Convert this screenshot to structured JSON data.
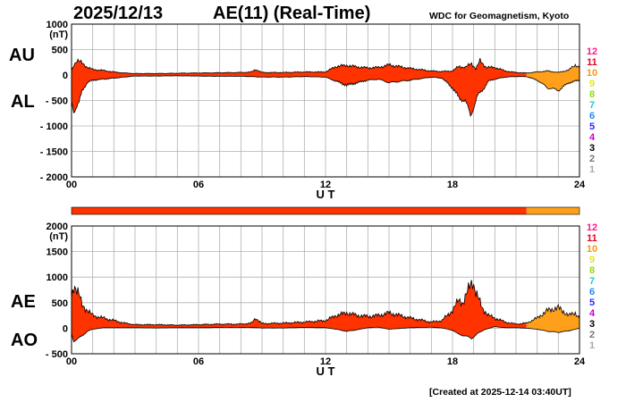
{
  "header": {
    "date": "2025/12/13",
    "title": "AE(11) (Real-Time)",
    "source": "WDC for Geomagnetism, Kyoto",
    "created": "[Created at 2025-12-14 03:40UT]"
  },
  "colors": {
    "band": "#ff3300",
    "edge": "#000000",
    "band_late": "#ff9f1a",
    "grid": "#b0b0b0"
  },
  "station_levels": {
    "labels": [
      "12",
      "11",
      "10",
      "9",
      "8",
      "7",
      "6",
      "5",
      "4",
      "3",
      "2",
      "1"
    ],
    "colors": [
      "#ff1a8c",
      "#e8001c",
      "#ff9900",
      "#e8e800",
      "#88e000",
      "#22cccc",
      "#1a8cff",
      "#2b2bff",
      "#cc00cc",
      "#000000",
      "#777777",
      "#aaaaaa"
    ]
  },
  "chart_data": [
    {
      "type": "area",
      "name": "AU / AL",
      "side_labels": [
        "AU",
        "AL"
      ],
      "ylabel": "(nT)",
      "xlabel": "U T",
      "x_ticks": [
        "00",
        "06",
        "12",
        "18",
        "24"
      ],
      "xlim": [
        0,
        24
      ],
      "ylim": [
        -2000,
        1000
      ],
      "y_ticks": [
        1000,
        500,
        0,
        -500,
        -1000,
        -1500,
        -2000
      ],
      "y_tick_labels": [
        "1000",
        "500",
        "0",
        "- 500",
        "- 1000",
        "- 1500",
        "- 2000"
      ],
      "upper": {
        "name": "AU",
        "x": [
          0,
          0.1,
          0.25,
          0.5,
          0.75,
          1,
          1.5,
          2,
          2.5,
          3,
          4,
          5,
          6,
          7,
          8,
          8.5,
          8.7,
          9,
          10,
          11,
          12,
          12.5,
          13,
          13.5,
          14,
          14.5,
          15,
          16,
          17,
          17.5,
          18,
          18.3,
          18.6,
          18.9,
          19.1,
          19.3,
          19.6,
          20,
          20.5,
          21,
          21.5,
          22,
          22.5,
          23,
          23.5,
          23.8,
          24
        ],
        "y": [
          80,
          200,
          280,
          240,
          150,
          110,
          90,
          60,
          40,
          30,
          30,
          35,
          40,
          45,
          50,
          60,
          110,
          50,
          50,
          60,
          60,
          170,
          190,
          160,
          140,
          150,
          200,
          130,
          80,
          70,
          80,
          170,
          150,
          230,
          120,
          280,
          150,
          150,
          80,
          50,
          40,
          60,
          80,
          50,
          100,
          200,
          150
        ]
      },
      "lower": {
        "name": "AL",
        "x": [
          0,
          0.1,
          0.2,
          0.35,
          0.5,
          0.75,
          1,
          1.5,
          2,
          2.5,
          3,
          4,
          5,
          6,
          7,
          8,
          8.5,
          9,
          10,
          11,
          12,
          12.5,
          13,
          13.5,
          14,
          14.5,
          15,
          16,
          17,
          17.5,
          18,
          18.3,
          18.6,
          18.85,
          19,
          19.2,
          19.5,
          19.7,
          20,
          20.5,
          21,
          21.5,
          22,
          22.5,
          23,
          23.5,
          24
        ],
        "y": [
          -500,
          -700,
          -650,
          -560,
          -300,
          -150,
          -100,
          -80,
          -60,
          -40,
          -20,
          -20,
          -15,
          -20,
          -25,
          -25,
          -30,
          -40,
          -40,
          -30,
          -40,
          -120,
          -200,
          -150,
          -100,
          -80,
          -150,
          -100,
          -40,
          -60,
          -250,
          -450,
          -500,
          -800,
          -620,
          -400,
          -250,
          -120,
          -80,
          -40,
          -30,
          -30,
          -100,
          -250,
          -300,
          -150,
          -100
        ]
      },
      "color_change_at": 21.5
    },
    {
      "type": "area",
      "name": "AE / AO",
      "side_labels": [
        "AE",
        "AO"
      ],
      "ylabel": "(nT)",
      "xlabel": "U T",
      "x_ticks": [
        "00",
        "06",
        "12",
        "18",
        "24"
      ],
      "xlim": [
        0,
        24
      ],
      "ylim": [
        -500,
        2000
      ],
      "y_ticks": [
        2000,
        1500,
        1000,
        500,
        0,
        -500
      ],
      "y_tick_labels": [
        "2000",
        "1500",
        "1000",
        "500",
        "0",
        "- 500"
      ],
      "upper": {
        "name": "AE",
        "x": [
          0,
          0.1,
          0.2,
          0.35,
          0.5,
          0.75,
          1,
          1.5,
          2,
          2.5,
          3,
          4,
          5,
          6,
          7,
          8,
          8.5,
          8.7,
          9,
          10,
          11,
          12,
          12.5,
          13,
          13.5,
          14,
          14.5,
          15,
          16,
          17,
          17.5,
          18,
          18.3,
          18.5,
          18.8,
          18.95,
          19.1,
          19.4,
          19.7,
          20,
          20.5,
          21,
          21.5,
          22,
          22.5,
          23,
          23.5,
          23.8,
          24
        ],
        "y": [
          600,
          850,
          800,
          650,
          450,
          350,
          250,
          200,
          150,
          100,
          70,
          70,
          60,
          70,
          80,
          80,
          100,
          200,
          90,
          100,
          120,
          150,
          250,
          300,
          250,
          230,
          250,
          300,
          200,
          120,
          150,
          350,
          550,
          500,
          800,
          950,
          700,
          400,
          250,
          200,
          120,
          80,
          100,
          200,
          350,
          400,
          250,
          300,
          200
        ]
      },
      "lower": {
        "name": "AO",
        "x": [
          0,
          0.1,
          0.25,
          0.5,
          0.75,
          1,
          1.5,
          2,
          2.5,
          3,
          4,
          5,
          6,
          7,
          8,
          8.5,
          9,
          10,
          11,
          12,
          12.5,
          13,
          13.5,
          14,
          14.5,
          15,
          16,
          17,
          17.5,
          18,
          18.3,
          18.6,
          18.9,
          19.2,
          19.5,
          20,
          20.5,
          21,
          21.5,
          22,
          22.5,
          23,
          23.5,
          24
        ],
        "y": [
          -100,
          -250,
          -220,
          -150,
          -60,
          -20,
          10,
          10,
          10,
          10,
          5,
          10,
          10,
          15,
          15,
          15,
          5,
          5,
          15,
          10,
          -20,
          -60,
          -30,
          10,
          20,
          -20,
          10,
          20,
          5,
          -40,
          -120,
          -150,
          -200,
          -100,
          -30,
          30,
          10,
          10,
          0,
          -20,
          -60,
          -80,
          -50,
          0
        ]
      },
      "color_change_at": 21.5
    }
  ]
}
